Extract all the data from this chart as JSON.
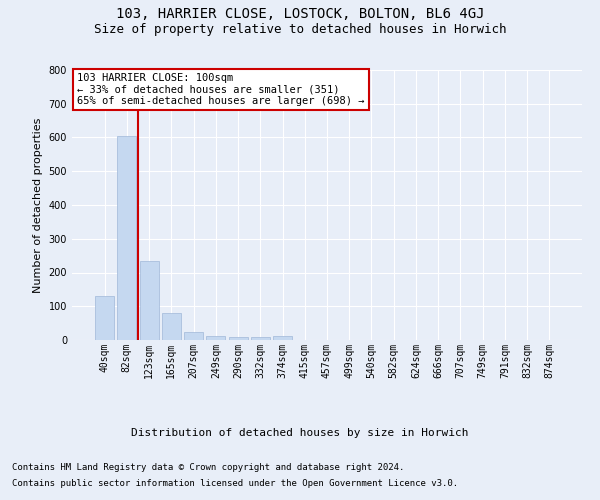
{
  "title": "103, HARRIER CLOSE, LOSTOCK, BOLTON, BL6 4GJ",
  "subtitle": "Size of property relative to detached houses in Horwich",
  "xlabel": "Distribution of detached houses by size in Horwich",
  "ylabel": "Number of detached properties",
  "categories": [
    "40sqm",
    "82sqm",
    "123sqm",
    "165sqm",
    "207sqm",
    "249sqm",
    "290sqm",
    "332sqm",
    "374sqm",
    "415sqm",
    "457sqm",
    "499sqm",
    "540sqm",
    "582sqm",
    "624sqm",
    "666sqm",
    "707sqm",
    "749sqm",
    "791sqm",
    "832sqm",
    "874sqm"
  ],
  "values": [
    130,
    603,
    235,
    80,
    25,
    12,
    10,
    10,
    12,
    0,
    0,
    0,
    0,
    0,
    0,
    0,
    0,
    0,
    0,
    0,
    0
  ],
  "bar_color": "#c5d8f0",
  "bar_edge_color": "#a0b8d8",
  "vline_x": 1.5,
  "vline_color": "#cc0000",
  "annotation_text": "103 HARRIER CLOSE: 100sqm\n← 33% of detached houses are smaller (351)\n65% of semi-detached houses are larger (698) →",
  "annotation_box_color": "#ffffff",
  "annotation_box_edge": "#cc0000",
  "ylim": [
    0,
    800
  ],
  "yticks": [
    0,
    100,
    200,
    300,
    400,
    500,
    600,
    700,
    800
  ],
  "bg_color": "#e8eef8",
  "plot_bg_color": "#e8eef8",
  "footer_line1": "Contains HM Land Registry data © Crown copyright and database right 2024.",
  "footer_line2": "Contains public sector information licensed under the Open Government Licence v3.0.",
  "title_fontsize": 10,
  "subtitle_fontsize": 9,
  "axis_label_fontsize": 8,
  "tick_fontsize": 7,
  "annotation_fontsize": 7.5,
  "footer_fontsize": 6.5
}
